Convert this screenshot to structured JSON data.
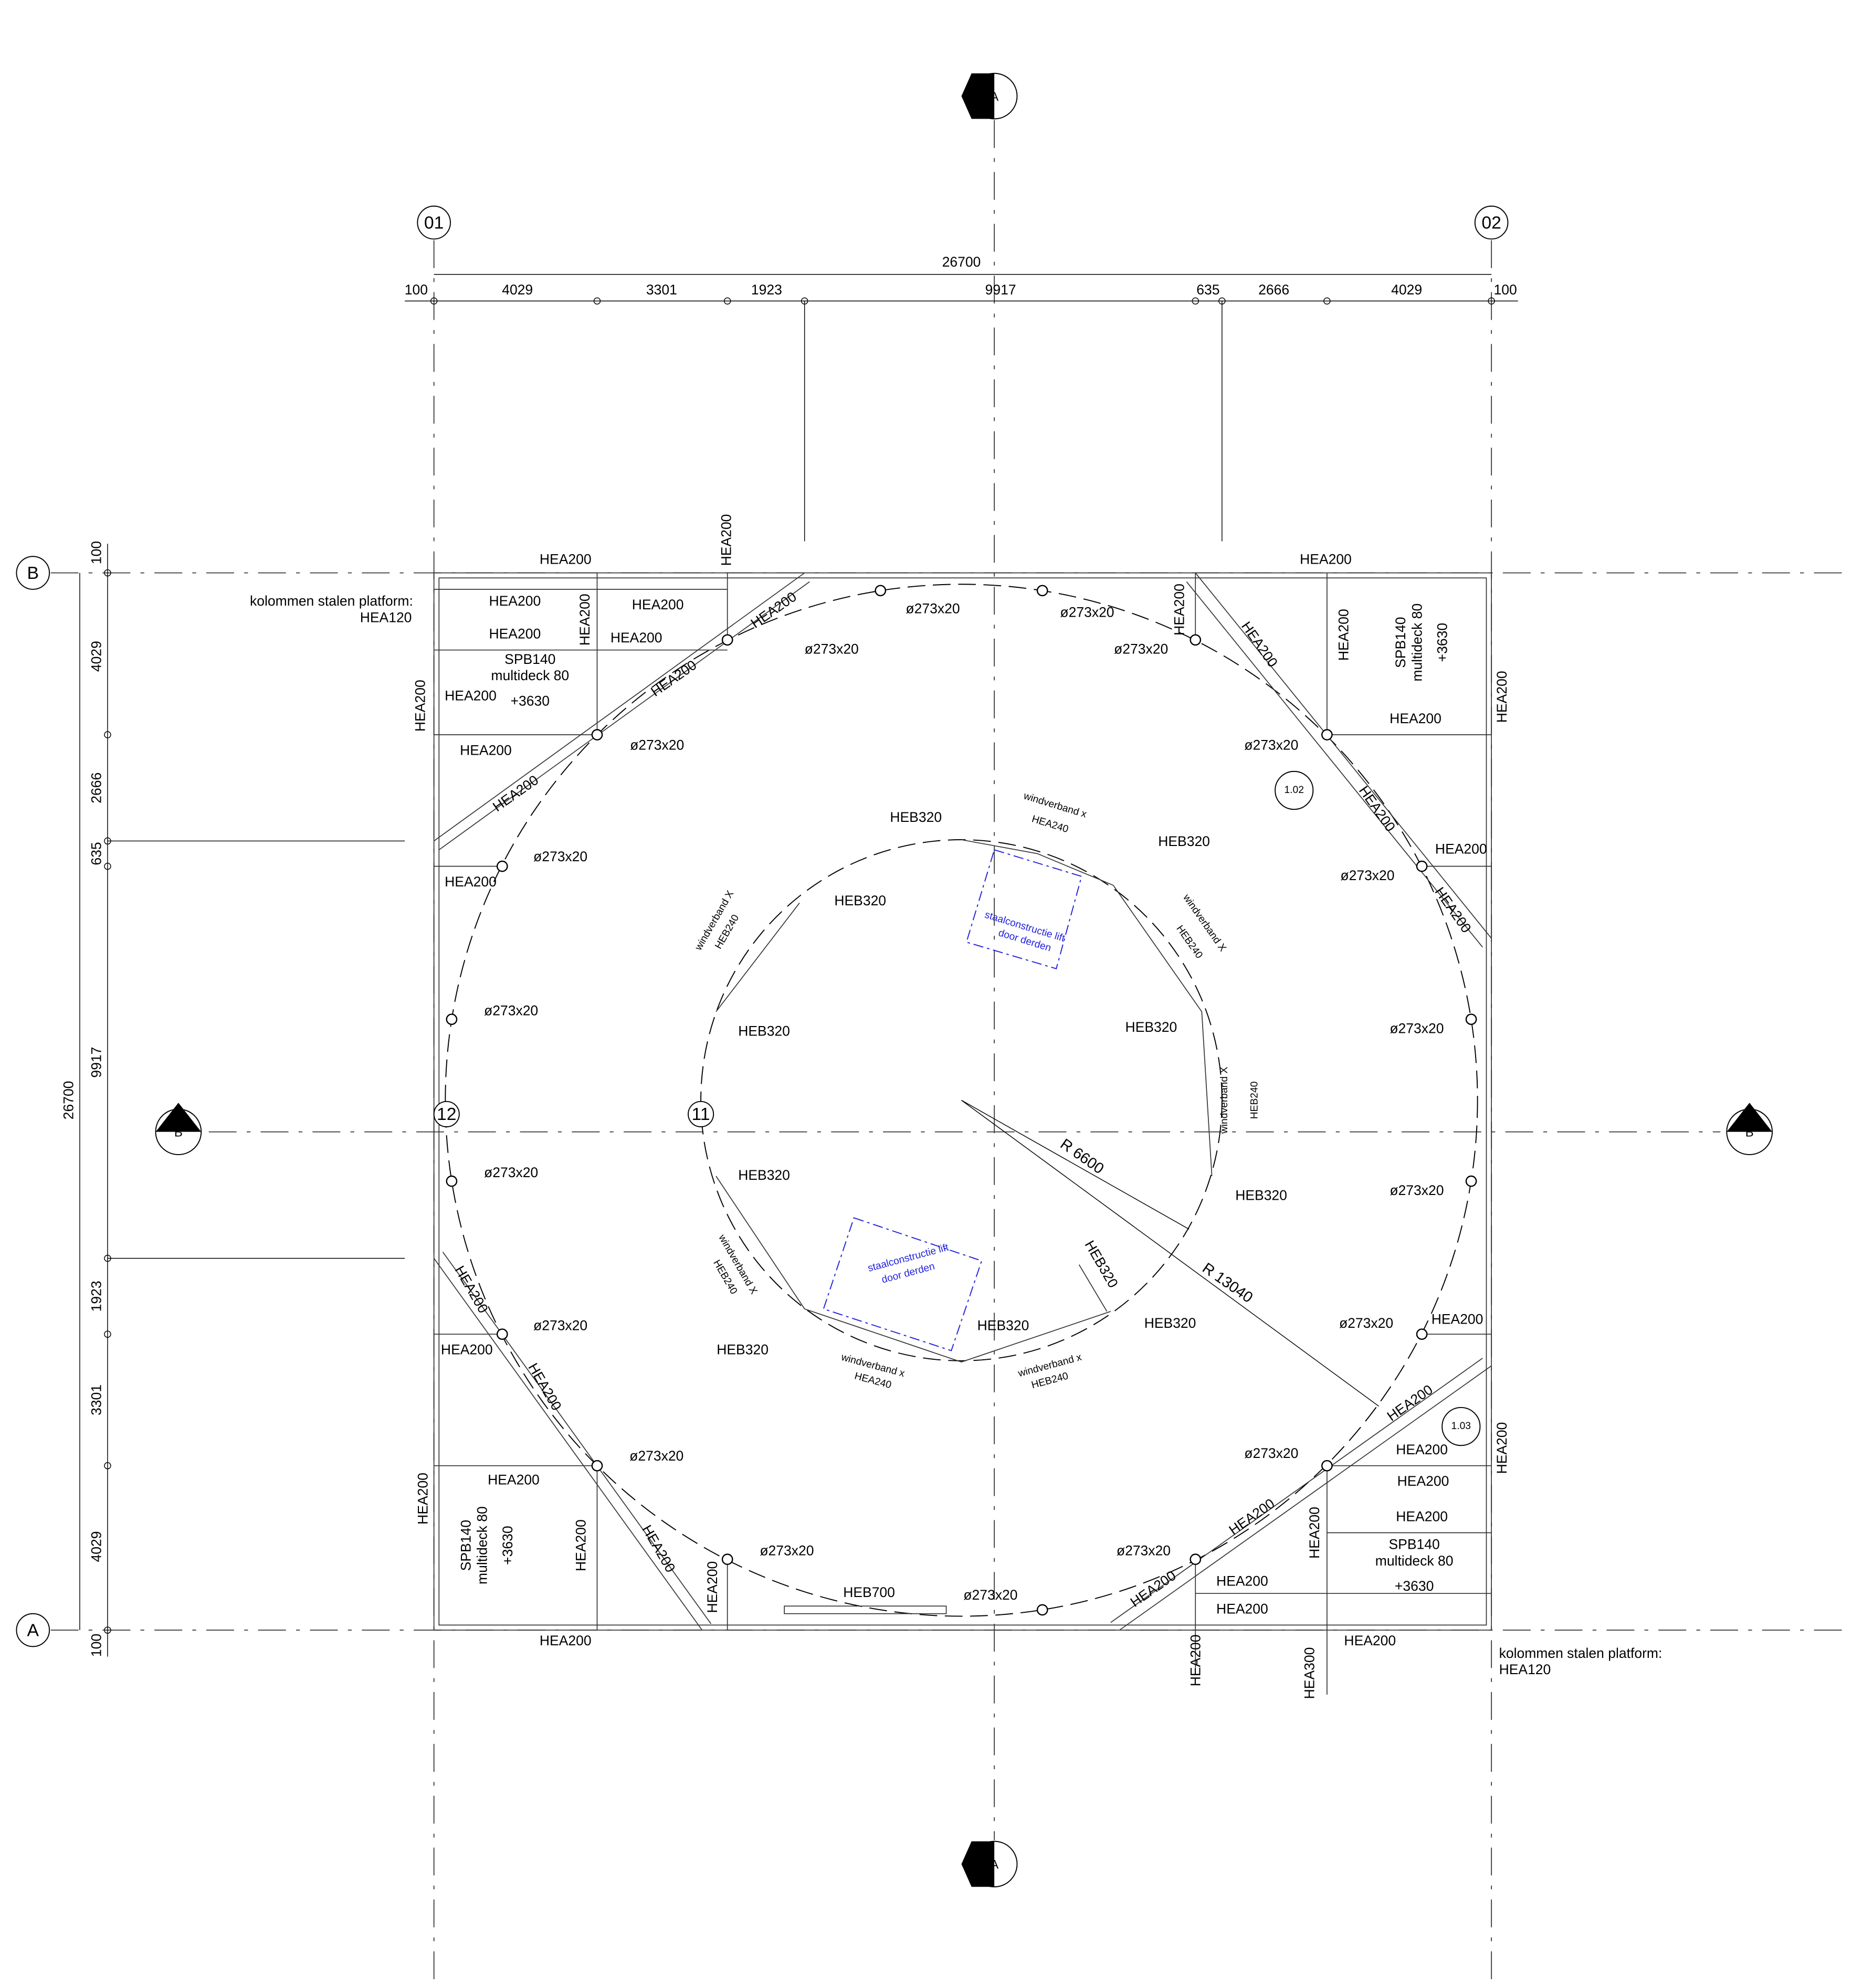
{
  "grid_markers": [
    "01",
    "02",
    "B",
    "A"
  ],
  "section_markers": [
    "A",
    "A",
    "B",
    "B"
  ],
  "dimensions_top": [
    "26700",
    "100",
    "4029",
    "3301",
    "1923",
    "9917",
    "635",
    "2666",
    "4029",
    "100"
  ],
  "dimensions_left": [
    "26700",
    "100",
    "4029",
    "2666",
    "635",
    "9917",
    "1923",
    "3301",
    "4029",
    "100"
  ],
  "labels": [
    "HEA200",
    "HEA200",
    "HEA200",
    "kolommen stalen platform:",
    "HEA120",
    "HEA200",
    "HEA200",
    "HEA200",
    "HEA200",
    "HEA200",
    "HEA200",
    "HEA200",
    "SPB140",
    "multideck 80",
    "+3630",
    "HEA200",
    "HEA200",
    "HEA200",
    "HEA200",
    "ø273x20",
    "ø273x20",
    "ø273x20",
    "ø273x20",
    "ø273x20",
    "HEA200",
    "HEA200",
    "HEA200",
    "SPB140",
    "multideck 80",
    "+3630",
    "HEA200",
    "ø273x20",
    "HEA200",
    "1.02",
    "HEA200",
    "HEA200",
    "ø273x20",
    "HEA200",
    "ø273x20",
    "HEA200",
    "ø273x20",
    "ø273x20",
    "ø273x20",
    "ø273x20",
    "12",
    "11",
    "HEB320",
    "windverband x",
    "HEA240",
    "HEB320",
    "HEB320",
    "windverband X",
    "HEB240",
    "staalconstructie lift",
    "door derden",
    "windverband X",
    "HEB240",
    "HEB320",
    "HEB320",
    "windverband X",
    "HEB240",
    "R 6600",
    "HEB320",
    "HEB320",
    "R 13040",
    "windverband X",
    "HEB240",
    "staalconstructie lift",
    "door derden",
    "HEB320",
    "HEB320",
    "HEB320",
    "HEB320",
    "windverband x",
    "HEA240",
    "windverband x",
    "HEB240",
    "ø273x20",
    "HEA200",
    "HEA200",
    "HEA200",
    "ø273x20",
    "HEA200",
    "HEA200",
    "SPB140",
    "multideck 80",
    "+3630",
    "HEA200",
    "HEA200",
    "ø273x20",
    "HEA200",
    "HEB700",
    "ø273x20",
    "HEA200",
    "ø273x20",
    "HEA200",
    "HEA200",
    "1.03",
    "HEA200",
    "ø273x20",
    "HEA200",
    "HEA200",
    "HEA200",
    "ø273x20",
    "HEA200",
    "HEA200",
    "HEA200",
    "HEA200",
    "HEA200",
    "SPB140",
    "multideck 80",
    "+3630",
    "HEA200",
    "HEA200",
    "HEA300",
    "kolommen stalen platform:",
    "HEA120"
  ]
}
